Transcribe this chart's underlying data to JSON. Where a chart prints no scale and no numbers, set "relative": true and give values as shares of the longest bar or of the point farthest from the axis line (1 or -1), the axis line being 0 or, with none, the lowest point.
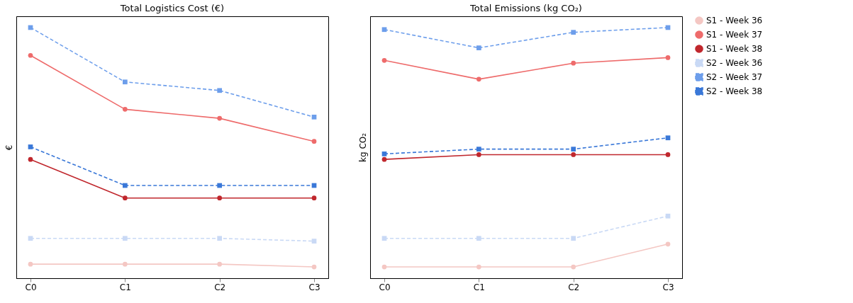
{
  "chart_data": [
    {
      "type": "line",
      "title": "Total Logistics Cost (€)",
      "ylabel": "€",
      "relative": true,
      "categories": [
        "C0",
        "C1",
        "C2",
        "C3"
      ],
      "grid": false,
      "legend": false,
      "series": [
        {
          "color": "#f4c7c3",
          "marker": "circle",
          "line_style": "solid",
          "values": [
            0.056,
            0.056,
            0.056,
            0.045
          ]
        },
        {
          "color": "#ee6b6b",
          "marker": "circle",
          "line_style": "solid",
          "values": [
            0.889,
            0.674,
            0.638,
            0.546
          ]
        },
        {
          "color": "#c0272d",
          "marker": "circle",
          "line_style": "solid",
          "values": [
            0.474,
            0.32,
            0.32,
            0.32
          ]
        },
        {
          "color": "#c9d9f5",
          "marker": "square",
          "line_style": "dashed",
          "values": [
            0.159,
            0.159,
            0.159,
            0.148
          ]
        },
        {
          "color": "#6d9eeb",
          "marker": "square",
          "line_style": "dashed",
          "values": [
            1,
            0.783,
            0.749,
            0.643
          ]
        },
        {
          "color": "#3a78d8",
          "marker": "square",
          "line_style": "dashed",
          "values": [
            0.524,
            0.37,
            0.37,
            0.37
          ]
        }
      ]
    },
    {
      "type": "line",
      "title": "Total Emissions (kg CO₂)",
      "ylabel": "kg CO₂",
      "relative": true,
      "categories": [
        "C0",
        "C1",
        "C2",
        "C3"
      ],
      "grid": false,
      "legend": "right",
      "series": [
        {
          "name": "S1 - Week 36",
          "color": "#f4c7c3",
          "marker": "circle",
          "line_style": "solid",
          "values": [
            0.045,
            0.045,
            0.045,
            0.136
          ]
        },
        {
          "name": "S1 - Week 37",
          "color": "#ee6b6b",
          "marker": "circle",
          "line_style": "solid",
          "values": [
            0.869,
            0.794,
            0.858,
            0.88
          ]
        },
        {
          "name": "S1 - Week 38",
          "color": "#c0272d",
          "marker": "circle",
          "line_style": "solid",
          "values": [
            0.474,
            0.493,
            0.493,
            0.493
          ]
        },
        {
          "name": "S2 - Week 36",
          "color": "#c9d9f5",
          "marker": "square",
          "line_style": "dashed",
          "values": [
            0.159,
            0.159,
            0.159,
            0.248
          ]
        },
        {
          "name": "S2 - Week 37",
          "color": "#6d9eeb",
          "marker": "square",
          "line_style": "dashed",
          "values": [
            0.992,
            0.919,
            0.981,
            1
          ]
        },
        {
          "name": "S2 - Week 38",
          "color": "#3a78d8",
          "marker": "square",
          "line_style": "dashed",
          "values": [
            0.496,
            0.515,
            0.515,
            0.56
          ]
        }
      ]
    }
  ]
}
